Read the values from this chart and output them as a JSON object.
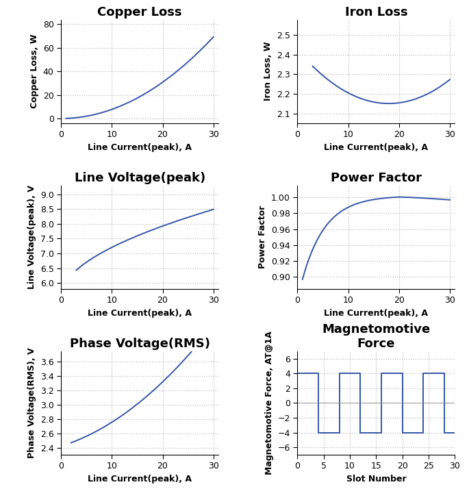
{
  "copper_loss": {
    "title": "Copper Loss",
    "xlabel": "Line Current(peak), A",
    "ylabel": "Copper Loss, W",
    "x_start": 1,
    "x_end": 30,
    "coeff": 0.077,
    "ylim": [
      -4,
      84
    ],
    "yticks": [
      0,
      20,
      40,
      60,
      80
    ],
    "xlim": [
      0,
      31
    ],
    "xticks": [
      0,
      10,
      20,
      30
    ]
  },
  "iron_loss": {
    "title": "Iron Loss",
    "xlabel": "Line Current(peak), A",
    "ylabel": "Iron Loss, W",
    "x_start": 3,
    "x_end": 30,
    "a": 0.00085,
    "b": -0.0306,
    "c": 2.426,
    "ylim": [
      2.05,
      2.58
    ],
    "yticks": [
      2.1,
      2.2,
      2.3,
      2.4,
      2.5
    ],
    "xlim": [
      0,
      31
    ],
    "xticks": [
      0,
      10,
      20,
      30
    ]
  },
  "line_voltage": {
    "title": "Line Voltage(peak)",
    "xlabel": "Line Current(peak), A",
    "ylabel": "Line Voltage(peak), V",
    "x_start": 3,
    "x_end": 30,
    "ylim": [
      5.8,
      9.3
    ],
    "yticks": [
      6.0,
      6.5,
      7.0,
      7.5,
      8.0,
      8.5,
      9.0
    ],
    "xlim": [
      0,
      31
    ],
    "xticks": [
      0,
      10,
      20,
      30
    ]
  },
  "power_factor": {
    "title": "Power Factor",
    "xlabel": "Line Current(peak), A",
    "ylabel": "Power Factor",
    "x_start": 1,
    "x_end": 30,
    "ylim": [
      0.885,
      1.015
    ],
    "yticks": [
      0.9,
      0.92,
      0.94,
      0.96,
      0.98,
      1.0
    ],
    "xlim": [
      0,
      31
    ],
    "xticks": [
      0,
      10,
      20,
      30
    ]
  },
  "phase_voltage": {
    "title": "Phase Voltage(RMS)",
    "xlabel": "Line Current(peak), A",
    "ylabel": "Phase Voltage(RMS), V",
    "x_start": 2,
    "x_end": 30,
    "ylim": [
      2.3,
      3.75
    ],
    "yticks": [
      2.4,
      2.6,
      2.8,
      3.0,
      3.2,
      3.4,
      3.6
    ],
    "xlim": [
      0,
      31
    ],
    "xticks": [
      0,
      10,
      20,
      30
    ]
  },
  "mmf": {
    "title": "Magnetomotive\nForce",
    "xlabel": "Slot Number",
    "ylabel": "Magnetomotive Force, AT@1A",
    "ylim": [
      -7,
      7
    ],
    "yticks": [
      -6,
      -4,
      -2,
      0,
      2,
      4,
      6
    ],
    "xlim": [
      0,
      30
    ],
    "xticks": [
      0,
      5,
      10,
      15,
      20,
      25,
      30
    ],
    "mmf_pattern": [
      4,
      4,
      4,
      4,
      -4,
      -4,
      -4,
      -4
    ]
  },
  "line_color": "#3355aa",
  "grid_color": "#bbbbbb",
  "title_fontsize": 13,
  "label_fontsize": 9,
  "tick_fontsize": 9
}
